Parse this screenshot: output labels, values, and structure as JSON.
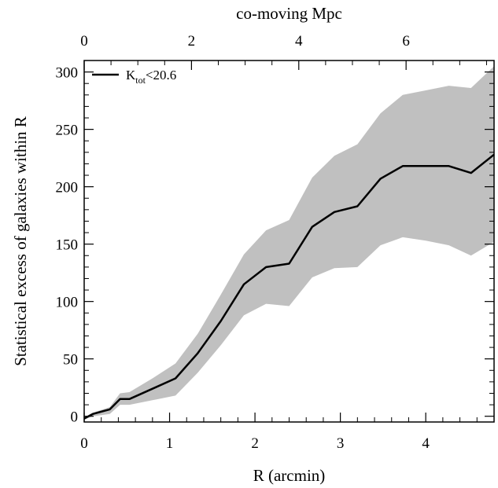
{
  "chart_data": {
    "type": "line",
    "xlabel": "R (arcmin)",
    "ylabel": "Statistical excess of galaxies within R",
    "top_xlabel": "co-moving Mpc",
    "xlim": [
      0,
      4.8
    ],
    "ylim": [
      -5,
      310
    ],
    "top_xlim": [
      0,
      7.64
    ],
    "x_ticks": [
      0,
      1,
      2,
      3,
      4
    ],
    "x_tick_labels": [
      "0",
      "1",
      "2",
      "3",
      "4"
    ],
    "y_ticks": [
      0,
      50,
      100,
      150,
      200,
      250,
      300
    ],
    "y_tick_labels": [
      "0",
      "50",
      "100",
      "150",
      "200",
      "250",
      "300"
    ],
    "top_ticks": [
      0,
      2,
      4,
      6
    ],
    "top_tick_labels": [
      "0",
      "2",
      "4",
      "6"
    ],
    "legend": {
      "placement": "top-left",
      "label_main": "K",
      "label_sub": "tot",
      "label_rest": "<20.6"
    },
    "grid": false,
    "line_color": "#000000",
    "band_color": "#c0c0c0",
    "series": [
      {
        "name": "Ktot<20.6",
        "x": [
          0.0,
          0.1,
          0.3,
          0.42,
          0.53,
          0.8,
          1.07,
          1.33,
          1.6,
          1.87,
          2.13,
          2.4,
          2.67,
          2.93,
          3.2,
          3.47,
          3.73,
          4.0,
          4.27,
          4.53,
          4.8
        ],
        "y": [
          -2,
          2,
          6,
          15,
          15,
          24,
          33,
          55,
          83,
          115,
          130,
          133,
          165,
          178,
          183,
          207,
          218,
          218,
          218,
          212,
          228
        ],
        "lower": [
          -3,
          0,
          2,
          10,
          10,
          14,
          18,
          38,
          62,
          88,
          98,
          96,
          121,
          129,
          130,
          149,
          156,
          153,
          149,
          140,
          152
        ],
        "upper": [
          -1,
          3,
          8,
          20,
          21,
          33,
          46,
          72,
          106,
          141,
          162,
          171,
          208,
          227,
          237,
          264,
          280,
          284,
          288,
          286,
          305
        ]
      }
    ]
  }
}
